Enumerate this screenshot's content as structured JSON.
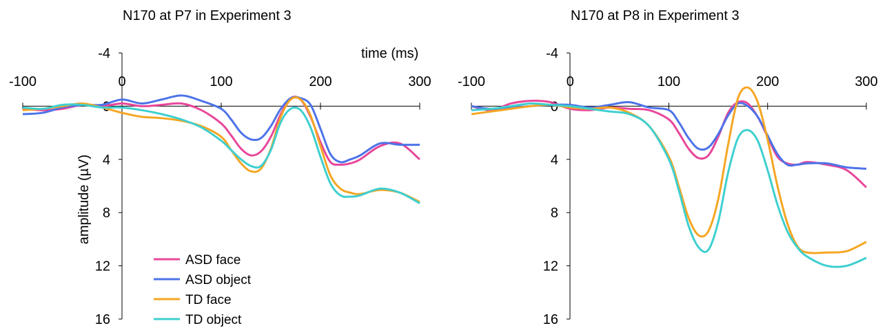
{
  "chart_data": [
    {
      "type": "line",
      "title": "N170 at P7 in Experiment 3",
      "xlabel": "time (ms)",
      "ylabel": "amplitude (µV)",
      "xlim": [
        -100,
        300
      ],
      "ylim": [
        -4,
        16
      ],
      "y_inverted": true,
      "xticks": [
        -100,
        0,
        100,
        200,
        300
      ],
      "yticks": [
        -4,
        0,
        4,
        8,
        12,
        16
      ],
      "legend": "bottom-left",
      "series": [
        {
          "name": "ASD face",
          "color": "#e8479a",
          "x": [
            -100,
            -80,
            -60,
            -40,
            -20,
            0,
            20,
            40,
            60,
            80,
            100,
            110,
            120,
            130,
            140,
            150,
            160,
            170,
            180,
            190,
            200,
            210,
            220,
            230,
            240,
            260,
            280,
            300
          ],
          "y": [
            0.2,
            0.3,
            0.2,
            -0.1,
            0,
            -0.2,
            0,
            -0.1,
            -0.2,
            0.3,
            1.3,
            2.2,
            3.2,
            3.7,
            3.4,
            2.3,
            0.6,
            -0.6,
            -0.5,
            0.8,
            2.7,
            4.2,
            4.4,
            4.3,
            4.0,
            3.0,
            2.8,
            4.0
          ]
        },
        {
          "name": "ASD object",
          "color": "#4d73e8",
          "x": [
            -100,
            -80,
            -60,
            -40,
            -20,
            0,
            20,
            40,
            60,
            80,
            100,
            110,
            120,
            130,
            140,
            150,
            160,
            170,
            180,
            190,
            200,
            210,
            220,
            230,
            240,
            260,
            280,
            300
          ],
          "y": [
            0.6,
            0.5,
            0.1,
            -0.1,
            -0.1,
            -0.5,
            -0.2,
            -0.5,
            -0.8,
            -0.4,
            0.2,
            1.0,
            2.0,
            2.5,
            2.4,
            1.5,
            0.2,
            -0.6,
            -0.6,
            -0.1,
            1.7,
            3.6,
            4.2,
            4.0,
            3.7,
            2.8,
            2.9,
            2.9
          ]
        },
        {
          "name": "TD face",
          "color": "#f5a623",
          "x": [
            -100,
            -80,
            -60,
            -40,
            -20,
            0,
            20,
            40,
            60,
            80,
            100,
            110,
            120,
            130,
            140,
            150,
            160,
            170,
            180,
            190,
            200,
            210,
            220,
            230,
            240,
            260,
            280,
            300
          ],
          "y": [
            0.3,
            0.2,
            0,
            -0.2,
            0.1,
            0.5,
            0.8,
            0.9,
            1.1,
            1.5,
            2.3,
            3.3,
            4.3,
            4.9,
            4.7,
            3.2,
            0.8,
            -0.5,
            -0.5,
            0.7,
            3.0,
            5.2,
            6.2,
            6.5,
            6.6,
            6.3,
            6.5,
            7.2
          ]
        },
        {
          "name": "TD object",
          "color": "#3fcfcf",
          "x": [
            -100,
            -80,
            -60,
            -40,
            -20,
            0,
            20,
            40,
            60,
            80,
            100,
            110,
            120,
            130,
            140,
            150,
            160,
            170,
            180,
            190,
            200,
            210,
            220,
            230,
            240,
            260,
            280,
            300
          ],
          "y": [
            0.1,
            0.2,
            -0.1,
            -0.1,
            0.1,
            0.1,
            0.3,
            0.6,
            1.0,
            1.6,
            2.6,
            3.3,
            4.0,
            4.5,
            4.5,
            3.3,
            1.2,
            0.2,
            0.3,
            1.6,
            3.8,
            5.8,
            6.7,
            6.8,
            6.7,
            6.2,
            6.5,
            7.3
          ]
        }
      ]
    },
    {
      "type": "line",
      "title": "N170 at P8 in Experiment 3",
      "xlim": [
        -100,
        300
      ],
      "ylim": [
        -4,
        16
      ],
      "y_inverted": true,
      "xticks": [
        -100,
        0,
        100,
        200,
        300
      ],
      "yticks": [
        -4,
        0,
        4,
        8,
        12,
        16
      ],
      "series": [
        {
          "name": "ASD face",
          "color": "#e8479a",
          "x": [
            -100,
            -80,
            -60,
            -40,
            -20,
            0,
            20,
            40,
            60,
            80,
            100,
            110,
            120,
            130,
            140,
            150,
            160,
            170,
            180,
            190,
            200,
            210,
            220,
            230,
            240,
            260,
            280,
            300
          ],
          "y": [
            0,
            0.3,
            -0.2,
            -0.4,
            -0.3,
            0.2,
            0.3,
            0.1,
            0.2,
            0.3,
            1.0,
            2.0,
            3.2,
            3.9,
            3.7,
            2.3,
            0.5,
            -0.3,
            -0.2,
            0.8,
            2.3,
            3.8,
            4.3,
            4.4,
            4.2,
            4.4,
            4.8,
            6.1
          ]
        },
        {
          "name": "ASD object",
          "color": "#4d73e8",
          "x": [
            -100,
            -80,
            -60,
            -40,
            -20,
            0,
            20,
            40,
            60,
            80,
            100,
            110,
            120,
            130,
            140,
            150,
            160,
            170,
            180,
            190,
            200,
            210,
            220,
            230,
            240,
            260,
            280,
            300
          ],
          "y": [
            0,
            0.2,
            0.1,
            0,
            -0.1,
            -0.1,
            0.1,
            -0.1,
            -0.3,
            0.1,
            0.3,
            1.2,
            2.4,
            3.2,
            3.1,
            2.1,
            0.7,
            -0.2,
            0,
            0.8,
            2.2,
            3.6,
            4.4,
            4.4,
            4.3,
            4.3,
            4.6,
            4.7
          ]
        },
        {
          "name": "TD face",
          "color": "#f5a623",
          "x": [
            -100,
            -80,
            -60,
            -40,
            -20,
            0,
            20,
            40,
            60,
            80,
            100,
            110,
            120,
            130,
            140,
            150,
            160,
            170,
            180,
            190,
            200,
            210,
            220,
            230,
            240,
            260,
            280,
            300
          ],
          "y": [
            0.6,
            0.4,
            0.2,
            0,
            -0.1,
            0.1,
            0.2,
            0.1,
            0.5,
            1.5,
            3.8,
            6.0,
            8.4,
            9.7,
            9.4,
            7.0,
            2.9,
            -0.6,
            -1.4,
            -0.3,
            2.5,
            6.0,
            8.8,
            10.5,
            11.0,
            11.0,
            10.9,
            10.2
          ]
        },
        {
          "name": "TD object",
          "color": "#3fcfcf",
          "x": [
            -100,
            -80,
            -60,
            -40,
            -20,
            0,
            20,
            40,
            60,
            80,
            100,
            110,
            120,
            130,
            140,
            150,
            160,
            170,
            180,
            190,
            200,
            210,
            220,
            230,
            240,
            260,
            280,
            300
          ],
          "y": [
            0.3,
            0.2,
            0,
            -0.2,
            -0.1,
            0,
            0.2,
            0.4,
            0.6,
            1.5,
            4.0,
            6.3,
            9.0,
            10.6,
            10.8,
            8.7,
            5.0,
            2.4,
            1.8,
            2.6,
            4.8,
            7.4,
            9.4,
            10.6,
            11.3,
            12,
            12,
            11.4
          ]
        }
      ]
    }
  ]
}
